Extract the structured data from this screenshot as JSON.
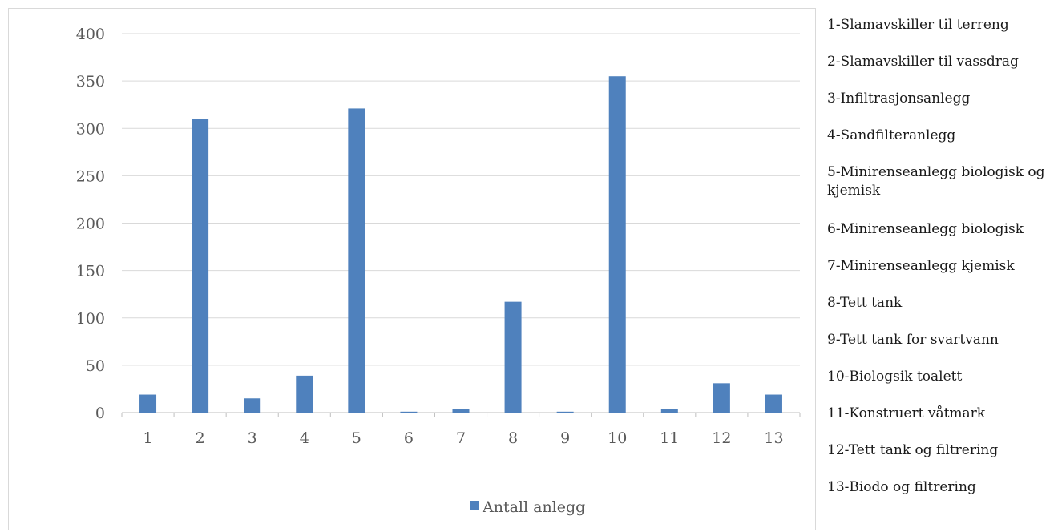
{
  "chart_data": {
    "type": "bar",
    "categories": [
      "1",
      "2",
      "3",
      "4",
      "5",
      "6",
      "7",
      "8",
      "9",
      "10",
      "11",
      "12",
      "13"
    ],
    "series": [
      {
        "name": "Antall anlegg",
        "color": "#4f81bd",
        "values": [
          19,
          310,
          15,
          39,
          321,
          1,
          4,
          117,
          1,
          355,
          4,
          31,
          19
        ]
      }
    ],
    "ylim": [
      0,
      400
    ],
    "yticks": [
      "0",
      "50",
      "100",
      "150",
      "200",
      "250",
      "300",
      "350",
      "400"
    ],
    "grid": true,
    "legend_position": "bottom",
    "category_descriptions": [
      "1-Slamavskiller til terreng",
      "2-Slamavskiller til vassdrag",
      "3-Infiltrasjonsanlegg",
      "4-Sandfilteranlegg",
      "5-Minirenseanlegg biologisk og kjemisk",
      "6-Minirenseanlegg biologisk",
      "7-Minirenseanlegg kjemisk",
      "8-Tett tank",
      "9-Tett tank for svartvann",
      "10-Biologsik toalett",
      "11-Konstruert våtmark",
      "12-Tett tank og filtrering",
      "13-Biodo og filtrering"
    ]
  }
}
